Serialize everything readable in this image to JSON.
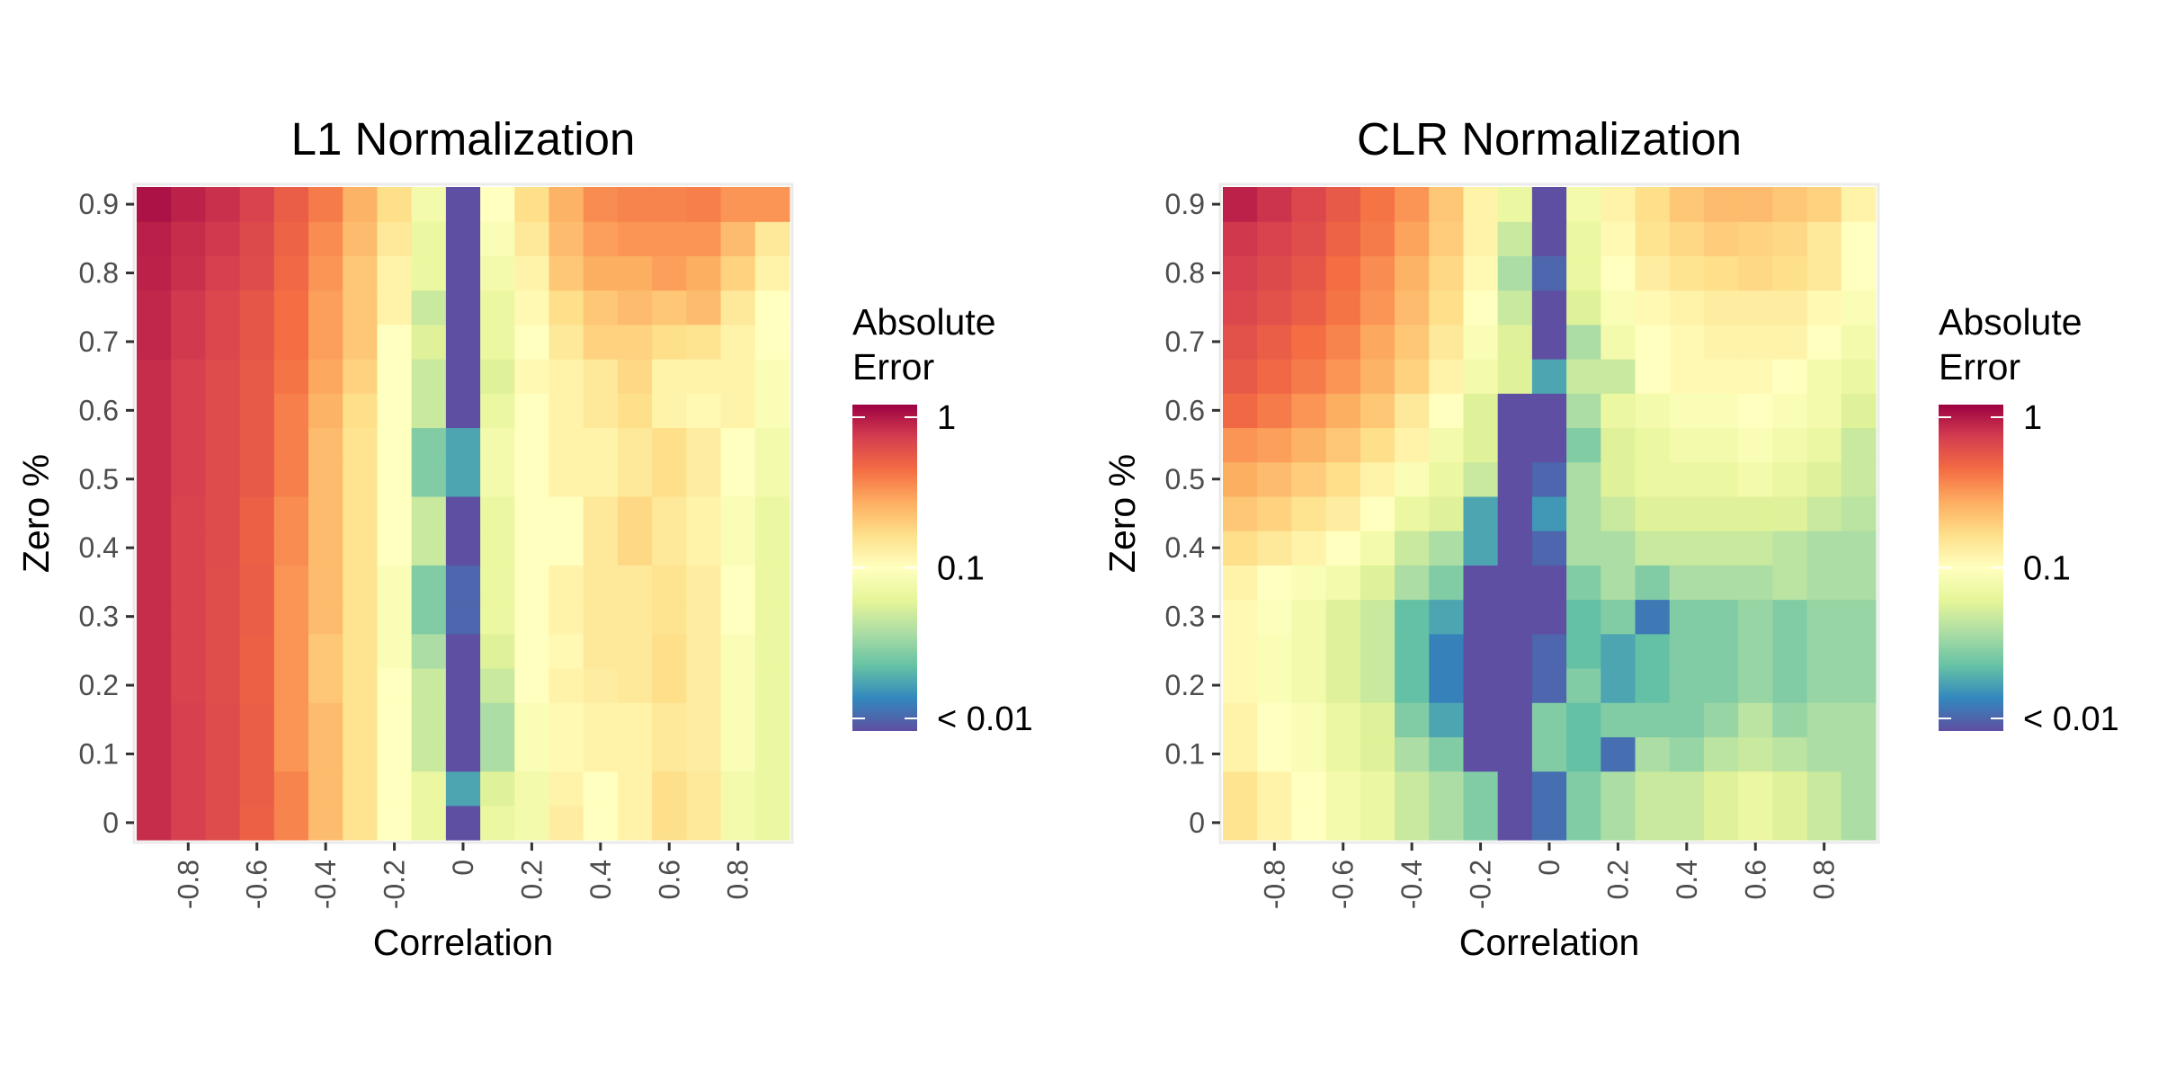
{
  "colors": {
    "scale": [
      "#5e4fa2",
      "#3288bd",
      "#66c2a5",
      "#abdda4",
      "#e6f598",
      "#ffffbf",
      "#fee08b",
      "#fdae61",
      "#f46d43",
      "#d53e4f",
      "#9e0142"
    ],
    "panel_border": "#ebebeb",
    "tick": "#333333"
  },
  "chart_data": [
    {
      "type": "heatmap",
      "title": "L1 Normalization",
      "xlabel": "Correlation",
      "ylabel": "Zero %",
      "x_values": [
        -0.9,
        -0.8,
        -0.7,
        -0.6,
        -0.5,
        -0.4,
        -0.3,
        -0.2,
        -0.1,
        0,
        0.1,
        0.2,
        0.3,
        0.4,
        0.5,
        0.6,
        0.7,
        0.8,
        0.9
      ],
      "x_ticks": [
        -0.8,
        -0.6,
        -0.4,
        -0.2,
        0,
        0.2,
        0.4,
        0.6,
        0.8
      ],
      "x_tick_labels": [
        "-0.8",
        "-0.6",
        "-0.4",
        "-0.2",
        "0",
        "0.2",
        "0.4",
        "0.6",
        "0.8"
      ],
      "y_values": [
        0,
        0.05,
        0.1,
        0.15,
        0.2,
        0.25,
        0.3,
        0.35,
        0.4,
        0.45,
        0.5,
        0.55,
        0.6,
        0.65,
        0.7,
        0.75,
        0.8,
        0.85,
        0.9
      ],
      "y_ticks": [
        0,
        0.1,
        0.2,
        0.3,
        0.4,
        0.5,
        0.6,
        0.7,
        0.8,
        0.9
      ],
      "y_tick_labels": [
        "0",
        "0.1",
        "0.2",
        "0.3",
        "0.4",
        "0.5",
        "0.6",
        "0.7",
        "0.8",
        "0.9"
      ],
      "legend": {
        "title_lines": [
          "Absolute",
          "Error"
        ],
        "labels": [
          "1",
          "0.1",
          "< 0.01"
        ],
        "label_values": [
          1,
          0.1,
          0.01
        ],
        "range": [
          0.01,
          1
        ],
        "scale": "log"
      },
      "z": [
        [
          0.72,
          0.62,
          0.55,
          0.45,
          0.34,
          0.22,
          0.15,
          0.1,
          0.07,
          0.005,
          0.07,
          0.08,
          0.13,
          0.1,
          0.12,
          0.16,
          0.14,
          0.08,
          0.07
        ],
        [
          0.72,
          0.62,
          0.55,
          0.46,
          0.34,
          0.22,
          0.15,
          0.1,
          0.07,
          0.02,
          0.06,
          0.08,
          0.12,
          0.1,
          0.12,
          0.16,
          0.14,
          0.08,
          0.07
        ],
        [
          0.72,
          0.62,
          0.55,
          0.46,
          0.3,
          0.22,
          0.15,
          0.1,
          0.05,
          0.005,
          0.04,
          0.09,
          0.11,
          0.12,
          0.12,
          0.14,
          0.13,
          0.09,
          0.07
        ],
        [
          0.72,
          0.62,
          0.55,
          0.46,
          0.3,
          0.22,
          0.15,
          0.1,
          0.05,
          0.005,
          0.04,
          0.09,
          0.11,
          0.12,
          0.12,
          0.14,
          0.13,
          0.09,
          0.07
        ],
        [
          0.72,
          0.6,
          0.54,
          0.45,
          0.3,
          0.2,
          0.15,
          0.1,
          0.05,
          0.005,
          0.05,
          0.1,
          0.12,
          0.13,
          0.14,
          0.16,
          0.13,
          0.09,
          0.07
        ],
        [
          0.72,
          0.6,
          0.54,
          0.45,
          0.3,
          0.2,
          0.15,
          0.09,
          0.04,
          0.005,
          0.06,
          0.1,
          0.11,
          0.14,
          0.14,
          0.16,
          0.13,
          0.09,
          0.07
        ],
        [
          0.72,
          0.6,
          0.54,
          0.46,
          0.3,
          0.22,
          0.15,
          0.09,
          0.03,
          0.012,
          0.07,
          0.1,
          0.12,
          0.14,
          0.14,
          0.15,
          0.13,
          0.1,
          0.07
        ],
        [
          0.72,
          0.6,
          0.54,
          0.46,
          0.3,
          0.22,
          0.15,
          0.09,
          0.03,
          0.012,
          0.07,
          0.1,
          0.12,
          0.14,
          0.14,
          0.15,
          0.13,
          0.1,
          0.07
        ],
        [
          0.72,
          0.6,
          0.55,
          0.45,
          0.32,
          0.22,
          0.15,
          0.1,
          0.05,
          0.005,
          0.07,
          0.1,
          0.1,
          0.14,
          0.17,
          0.14,
          0.12,
          0.09,
          0.07
        ],
        [
          0.72,
          0.6,
          0.55,
          0.45,
          0.32,
          0.22,
          0.15,
          0.1,
          0.05,
          0.005,
          0.07,
          0.1,
          0.1,
          0.14,
          0.17,
          0.14,
          0.12,
          0.09,
          0.07
        ],
        [
          0.72,
          0.62,
          0.55,
          0.48,
          0.35,
          0.22,
          0.15,
          0.1,
          0.03,
          0.02,
          0.08,
          0.1,
          0.12,
          0.12,
          0.14,
          0.16,
          0.13,
          0.1,
          0.08
        ],
        [
          0.72,
          0.62,
          0.55,
          0.48,
          0.35,
          0.22,
          0.15,
          0.1,
          0.03,
          0.02,
          0.08,
          0.1,
          0.12,
          0.12,
          0.14,
          0.16,
          0.13,
          0.1,
          0.08
        ],
        [
          0.72,
          0.62,
          0.55,
          0.48,
          0.35,
          0.24,
          0.16,
          0.1,
          0.05,
          0.005,
          0.07,
          0.1,
          0.12,
          0.14,
          0.16,
          0.12,
          0.11,
          0.12,
          0.09
        ],
        [
          0.72,
          0.62,
          0.55,
          0.48,
          0.38,
          0.26,
          0.18,
          0.1,
          0.05,
          0.005,
          0.06,
          0.11,
          0.12,
          0.14,
          0.17,
          0.12,
          0.12,
          0.12,
          0.09
        ],
        [
          0.75,
          0.65,
          0.58,
          0.5,
          0.4,
          0.28,
          0.2,
          0.1,
          0.06,
          0.005,
          0.07,
          0.1,
          0.14,
          0.18,
          0.18,
          0.16,
          0.15,
          0.12,
          0.1
        ],
        [
          0.75,
          0.65,
          0.58,
          0.5,
          0.4,
          0.28,
          0.2,
          0.12,
          0.05,
          0.008,
          0.07,
          0.11,
          0.16,
          0.2,
          0.22,
          0.2,
          0.22,
          0.14,
          0.1
        ],
        [
          0.78,
          0.7,
          0.62,
          0.55,
          0.42,
          0.3,
          0.2,
          0.12,
          0.07,
          0.007,
          0.08,
          0.12,
          0.2,
          0.25,
          0.25,
          0.28,
          0.25,
          0.18,
          0.12
        ],
        [
          0.8,
          0.72,
          0.65,
          0.56,
          0.44,
          0.32,
          0.22,
          0.14,
          0.07,
          0.005,
          0.09,
          0.14,
          0.22,
          0.28,
          0.3,
          0.3,
          0.3,
          0.22,
          0.14
        ],
        [
          0.88,
          0.78,
          0.7,
          0.6,
          0.46,
          0.36,
          0.24,
          0.16,
          0.08,
          0.005,
          0.1,
          0.16,
          0.24,
          0.32,
          0.34,
          0.34,
          0.35,
          0.3,
          0.3
        ]
      ]
    },
    {
      "type": "heatmap",
      "title": "CLR Normalization",
      "xlabel": "Correlation",
      "ylabel": "Zero %",
      "x_values": [
        -0.9,
        -0.8,
        -0.7,
        -0.6,
        -0.5,
        -0.4,
        -0.3,
        -0.2,
        -0.1,
        0,
        0.1,
        0.2,
        0.3,
        0.4,
        0.5,
        0.6,
        0.7,
        0.8,
        0.9
      ],
      "x_ticks": [
        -0.8,
        -0.6,
        -0.4,
        -0.2,
        0,
        0.2,
        0.4,
        0.6,
        0.8
      ],
      "x_tick_labels": [
        "-0.8",
        "-0.6",
        "-0.4",
        "-0.2",
        "0",
        "0.2",
        "0.4",
        "0.6",
        "0.8"
      ],
      "y_values": [
        0,
        0.05,
        0.1,
        0.15,
        0.2,
        0.25,
        0.3,
        0.35,
        0.4,
        0.45,
        0.5,
        0.55,
        0.6,
        0.65,
        0.7,
        0.75,
        0.8,
        0.85,
        0.9
      ],
      "y_ticks": [
        0,
        0.1,
        0.2,
        0.3,
        0.4,
        0.5,
        0.6,
        0.7,
        0.8,
        0.9
      ],
      "y_tick_labels": [
        "0",
        "0.1",
        "0.2",
        "0.3",
        "0.4",
        "0.5",
        "0.6",
        "0.7",
        "0.8",
        "0.9"
      ],
      "legend": {
        "title_lines": [
          "Absolute",
          "Error"
        ],
        "labels": [
          "1",
          "0.1",
          "< 0.01"
        ],
        "label_values": [
          1,
          0.1,
          0.01
        ],
        "range": [
          0.01,
          1
        ],
        "scale": "log"
      },
      "z": [
        [
          0.15,
          0.12,
          0.1,
          0.08,
          0.07,
          0.05,
          0.04,
          0.03,
          0.005,
          0.013,
          0.03,
          0.04,
          0.05,
          0.05,
          0.06,
          0.07,
          0.06,
          0.05,
          0.04
        ],
        [
          0.15,
          0.12,
          0.1,
          0.08,
          0.07,
          0.05,
          0.04,
          0.03,
          0.005,
          0.013,
          0.03,
          0.04,
          0.05,
          0.05,
          0.06,
          0.07,
          0.06,
          0.05,
          0.04
        ],
        [
          0.12,
          0.1,
          0.09,
          0.07,
          0.06,
          0.04,
          0.03,
          0.007,
          0.005,
          0.03,
          0.025,
          0.013,
          0.04,
          0.035,
          0.045,
          0.05,
          0.045,
          0.04,
          0.04
        ],
        [
          0.12,
          0.1,
          0.09,
          0.07,
          0.06,
          0.03,
          0.02,
          0.007,
          0.005,
          0.03,
          0.025,
          0.03,
          0.03,
          0.03,
          0.035,
          0.045,
          0.035,
          0.04,
          0.04
        ],
        [
          0.11,
          0.09,
          0.08,
          0.06,
          0.05,
          0.025,
          0.015,
          0.005,
          0.005,
          0.012,
          0.03,
          0.02,
          0.025,
          0.03,
          0.03,
          0.035,
          0.03,
          0.035,
          0.035
        ],
        [
          0.11,
          0.09,
          0.08,
          0.06,
          0.05,
          0.025,
          0.015,
          0.005,
          0.005,
          0.012,
          0.025,
          0.02,
          0.025,
          0.03,
          0.03,
          0.035,
          0.03,
          0.035,
          0.035
        ],
        [
          0.11,
          0.095,
          0.08,
          0.06,
          0.05,
          0.025,
          0.02,
          0.01,
          0.005,
          0.01,
          0.025,
          0.03,
          0.014,
          0.03,
          0.03,
          0.035,
          0.03,
          0.035,
          0.035
        ],
        [
          0.12,
          0.1,
          0.09,
          0.08,
          0.06,
          0.04,
          0.03,
          0.01,
          0.005,
          0.01,
          0.03,
          0.04,
          0.03,
          0.04,
          0.04,
          0.04,
          0.045,
          0.04,
          0.04
        ],
        [
          0.16,
          0.14,
          0.12,
          0.1,
          0.08,
          0.05,
          0.04,
          0.02,
          0.005,
          0.012,
          0.04,
          0.04,
          0.05,
          0.05,
          0.05,
          0.05,
          0.045,
          0.04,
          0.04
        ],
        [
          0.2,
          0.18,
          0.15,
          0.13,
          0.1,
          0.07,
          0.06,
          0.02,
          0.005,
          0.018,
          0.04,
          0.05,
          0.06,
          0.06,
          0.06,
          0.06,
          0.06,
          0.05,
          0.045
        ],
        [
          0.25,
          0.22,
          0.19,
          0.16,
          0.12,
          0.09,
          0.07,
          0.05,
          0.005,
          0.012,
          0.04,
          0.06,
          0.07,
          0.07,
          0.07,
          0.08,
          0.07,
          0.06,
          0.05
        ],
        [
          0.3,
          0.28,
          0.24,
          0.2,
          0.16,
          0.12,
          0.08,
          0.06,
          0.007,
          0.005,
          0.03,
          0.06,
          0.07,
          0.08,
          0.08,
          0.09,
          0.08,
          0.07,
          0.05
        ],
        [
          0.42,
          0.36,
          0.3,
          0.25,
          0.2,
          0.14,
          0.1,
          0.06,
          0.005,
          0.005,
          0.04,
          0.07,
          0.08,
          0.09,
          0.09,
          0.1,
          0.09,
          0.08,
          0.06
        ],
        [
          0.48,
          0.42,
          0.36,
          0.3,
          0.24,
          0.18,
          0.12,
          0.08,
          0.06,
          0.02,
          0.05,
          0.05,
          0.1,
          0.11,
          0.11,
          0.11,
          0.1,
          0.08,
          0.07
        ],
        [
          0.52,
          0.46,
          0.4,
          0.34,
          0.26,
          0.2,
          0.14,
          0.09,
          0.06,
          0.005,
          0.04,
          0.08,
          0.1,
          0.11,
          0.12,
          0.12,
          0.12,
          0.1,
          0.08
        ],
        [
          0.58,
          0.52,
          0.46,
          0.38,
          0.3,
          0.22,
          0.16,
          0.1,
          0.05,
          0.005,
          0.06,
          0.09,
          0.11,
          0.12,
          0.13,
          0.13,
          0.13,
          0.11,
          0.09
        ],
        [
          0.62,
          0.56,
          0.5,
          0.4,
          0.32,
          0.24,
          0.17,
          0.11,
          0.04,
          0.012,
          0.07,
          0.1,
          0.13,
          0.15,
          0.16,
          0.17,
          0.16,
          0.14,
          0.1
        ],
        [
          0.66,
          0.6,
          0.54,
          0.44,
          0.36,
          0.27,
          0.19,
          0.12,
          0.05,
          0.005,
          0.07,
          0.11,
          0.15,
          0.17,
          0.19,
          0.18,
          0.17,
          0.14,
          0.1
        ],
        [
          0.78,
          0.68,
          0.58,
          0.48,
          0.38,
          0.3,
          0.2,
          0.12,
          0.07,
          0.005,
          0.08,
          0.12,
          0.16,
          0.2,
          0.22,
          0.22,
          0.2,
          0.18,
          0.12
        ]
      ]
    }
  ]
}
